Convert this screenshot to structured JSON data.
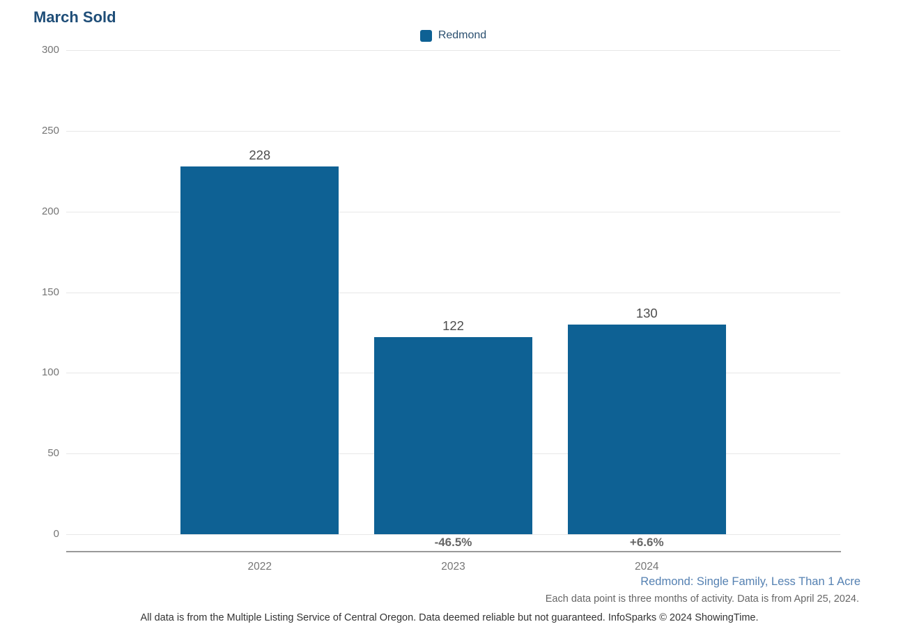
{
  "title": "March Sold",
  "chart_data": {
    "type": "bar",
    "title": "March Sold",
    "categories": [
      "2022",
      "2023",
      "2024"
    ],
    "series": [
      {
        "name": "Redmond",
        "color": "#0e6194",
        "values": [
          228,
          122,
          130
        ]
      }
    ],
    "value_labels": [
      "228",
      "122",
      "130"
    ],
    "change_labels": [
      "",
      "-46.5%",
      "+6.6%"
    ],
    "ylim": [
      0,
      300
    ],
    "yticks": [
      0,
      50,
      100,
      150,
      200,
      250,
      300
    ],
    "grid": "horizontal",
    "legend_position": "top-center"
  },
  "colors": {
    "bar": "#0e6194",
    "title": "#1f4e78",
    "grid": "#e7e7e7",
    "axis": "#999999",
    "tick_text": "#757575",
    "value_text": "#4d4d4d",
    "pct_text": "#666666",
    "segment_text": "#5581b2"
  },
  "footer": {
    "segment_label": "Redmond: Single Family, Less Than 1 Acre",
    "note_line1": "Each data point is three months of activity. Data is from April 25, 2024.",
    "note_line2": "All data is from the Multiple Listing Service of Central Oregon. Data deemed reliable but not guaranteed. InfoSparks © 2024 ShowingTime."
  }
}
